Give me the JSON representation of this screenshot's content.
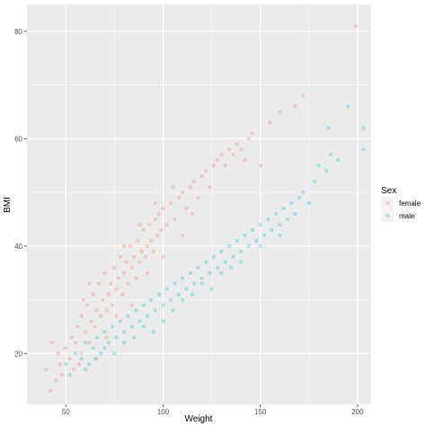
{
  "chart_data": {
    "type": "scatter",
    "title": "",
    "xlabel": "Weight",
    "ylabel": "BMI",
    "xlim": [
      30,
      207
    ],
    "ylim": [
      10.5,
      85
    ],
    "x_ticks": [
      50,
      100,
      150,
      200
    ],
    "y_ticks": [
      20,
      40,
      60,
      80
    ],
    "x_tick_labels": [
      "50",
      "100",
      "150",
      "200"
    ],
    "y_tick_labels": [
      "20",
      "40",
      "60",
      "80"
    ],
    "grid": true,
    "background": "#ebebeb",
    "point_opacity": 0.3,
    "legend": {
      "title": "Sex",
      "position": "right"
    },
    "series": [
      {
        "name": "female",
        "color": "#f8766d",
        "points": [
          [
            40,
            17
          ],
          [
            42,
            13
          ],
          [
            45,
            15
          ],
          [
            47,
            18
          ],
          [
            48,
            16
          ],
          [
            50,
            21
          ],
          [
            52,
            19
          ],
          [
            53,
            23
          ],
          [
            55,
            22
          ],
          [
            56,
            25
          ],
          [
            58,
            20
          ],
          [
            58,
            27
          ],
          [
            60,
            24
          ],
          [
            61,
            29
          ],
          [
            62,
            22
          ],
          [
            63,
            26
          ],
          [
            64,
            31
          ],
          [
            65,
            25
          ],
          [
            66,
            28
          ],
          [
            67,
            33
          ],
          [
            68,
            27
          ],
          [
            69,
            30
          ],
          [
            70,
            35
          ],
          [
            71,
            28
          ],
          [
            72,
            31
          ],
          [
            73,
            33
          ],
          [
            74,
            29
          ],
          [
            75,
            36
          ],
          [
            76,
            32
          ],
          [
            77,
            34
          ],
          [
            78,
            38
          ],
          [
            79,
            31
          ],
          [
            80,
            35
          ],
          [
            81,
            37
          ],
          [
            82,
            33
          ],
          [
            83,
            40
          ],
          [
            84,
            36
          ],
          [
            85,
            38
          ],
          [
            86,
            34
          ],
          [
            87,
            41
          ],
          [
            88,
            37
          ],
          [
            89,
            39
          ],
          [
            90,
            43
          ],
          [
            91,
            38
          ],
          [
            92,
            40
          ],
          [
            93,
            44
          ],
          [
            94,
            41
          ],
          [
            95,
            39
          ],
          [
            96,
            45
          ],
          [
            97,
            42
          ],
          [
            98,
            46
          ],
          [
            99,
            43
          ],
          [
            100,
            47
          ],
          [
            102,
            44
          ],
          [
            104,
            48
          ],
          [
            106,
            45
          ],
          [
            108,
            49
          ],
          [
            110,
            50
          ],
          [
            112,
            47
          ],
          [
            114,
            51
          ],
          [
            116,
            52
          ],
          [
            118,
            49
          ],
          [
            120,
            53
          ],
          [
            122,
            54
          ],
          [
            124,
            51
          ],
          [
            126,
            55
          ],
          [
            128,
            56
          ],
          [
            130,
            57
          ],
          [
            132,
            55
          ],
          [
            134,
            58
          ],
          [
            136,
            57
          ],
          [
            138,
            59
          ],
          [
            140,
            58
          ],
          [
            142,
            56
          ],
          [
            144,
            60
          ],
          [
            146,
            61
          ],
          [
            150,
            55
          ],
          [
            155,
            63
          ],
          [
            160,
            65
          ],
          [
            168,
            66
          ],
          [
            172,
            68
          ],
          [
            199,
            81
          ],
          [
            59,
            30
          ],
          [
            57,
            18
          ],
          [
            46,
            20
          ],
          [
            43,
            22
          ],
          [
            54,
            17
          ],
          [
            62,
            33
          ],
          [
            66,
            19
          ],
          [
            71,
            23
          ],
          [
            76,
            27
          ],
          [
            80,
            40
          ],
          [
            84,
            29
          ],
          [
            88,
            44
          ],
          [
            92,
            35
          ],
          [
            96,
            48
          ],
          [
            100,
            38
          ],
          [
            105,
            51
          ],
          [
            110,
            42
          ],
          [
            115,
            46
          ]
        ]
      },
      {
        "name": "male",
        "color": "#00bfc4",
        "points": [
          [
            50,
            18
          ],
          [
            52,
            16
          ],
          [
            55,
            20
          ],
          [
            58,
            19
          ],
          [
            60,
            22
          ],
          [
            62,
            18
          ],
          [
            64,
            21
          ],
          [
            66,
            23
          ],
          [
            68,
            20
          ],
          [
            70,
            24
          ],
          [
            72,
            22
          ],
          [
            74,
            25
          ],
          [
            76,
            23
          ],
          [
            78,
            26
          ],
          [
            80,
            24
          ],
          [
            82,
            27
          ],
          [
            84,
            25
          ],
          [
            86,
            28
          ],
          [
            88,
            26
          ],
          [
            90,
            29
          ],
          [
            92,
            27
          ],
          [
            94,
            30
          ],
          [
            96,
            28
          ],
          [
            98,
            31
          ],
          [
            100,
            29
          ],
          [
            102,
            32
          ],
          [
            104,
            30
          ],
          [
            106,
            33
          ],
          [
            108,
            31
          ],
          [
            110,
            34
          ],
          [
            112,
            32
          ],
          [
            114,
            35
          ],
          [
            116,
            33
          ],
          [
            118,
            36
          ],
          [
            120,
            34
          ],
          [
            122,
            37
          ],
          [
            124,
            35
          ],
          [
            126,
            38
          ],
          [
            128,
            36
          ],
          [
            130,
            39
          ],
          [
            132,
            37
          ],
          [
            134,
            40
          ],
          [
            136,
            38
          ],
          [
            138,
            41
          ],
          [
            140,
            39
          ],
          [
            142,
            42
          ],
          [
            144,
            40
          ],
          [
            146,
            43
          ],
          [
            148,
            41
          ],
          [
            150,
            44
          ],
          [
            152,
            42
          ],
          [
            154,
            45
          ],
          [
            156,
            43
          ],
          [
            158,
            46
          ],
          [
            160,
            44
          ],
          [
            162,
            47
          ],
          [
            164,
            45
          ],
          [
            166,
            48
          ],
          [
            168,
            46
          ],
          [
            170,
            49
          ],
          [
            172,
            50
          ],
          [
            175,
            48
          ],
          [
            178,
            52
          ],
          [
            180,
            55
          ],
          [
            184,
            54
          ],
          [
            190,
            56
          ],
          [
            195,
            66
          ],
          [
            203,
            62
          ],
          [
            203,
            58
          ],
          [
            186,
            57
          ],
          [
            185,
            62
          ],
          [
            60,
            17
          ],
          [
            65,
            19
          ],
          [
            70,
            21
          ],
          [
            75,
            20
          ],
          [
            80,
            22
          ],
          [
            85,
            23
          ],
          [
            90,
            25
          ],
          [
            95,
            24
          ],
          [
            100,
            26
          ],
          [
            105,
            28
          ],
          [
            110,
            30
          ],
          [
            115,
            31
          ],
          [
            120,
            33
          ],
          [
            125,
            32
          ],
          [
            130,
            35
          ],
          [
            135,
            36
          ],
          [
            140,
            37
          ],
          [
            150,
            40
          ],
          [
            160,
            42
          ]
        ]
      }
    ]
  }
}
